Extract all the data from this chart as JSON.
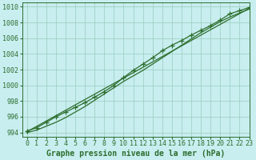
{
  "title": "Graphe pression niveau de la mer (hPa)",
  "xlim": [
    -0.5,
    23
  ],
  "ylim": [
    993.5,
    1010.5
  ],
  "yticks": [
    994,
    996,
    998,
    1000,
    1002,
    1004,
    1006,
    1008,
    1010
  ],
  "xticks": [
    0,
    1,
    2,
    3,
    4,
    5,
    6,
    7,
    8,
    9,
    10,
    11,
    12,
    13,
    14,
    15,
    16,
    17,
    18,
    19,
    20,
    21,
    22,
    23
  ],
  "background_color": "#c8eef0",
  "grid_color": "#99ccbb",
  "line_color": "#2d6e2d",
  "x": [
    0,
    1,
    2,
    3,
    4,
    5,
    6,
    7,
    8,
    9,
    10,
    11,
    12,
    13,
    14,
    15,
    16,
    17,
    18,
    19,
    20,
    21,
    22,
    23
  ],
  "y_upper": [
    994.2,
    994.6,
    995.3,
    996.0,
    996.6,
    997.2,
    997.8,
    998.5,
    999.2,
    1000.0,
    1001.0,
    1001.9,
    1002.7,
    1003.5,
    1004.4,
    1005.1,
    1005.7,
    1006.4,
    1007.0,
    1007.6,
    1008.3,
    1009.1,
    1009.5,
    1009.9
  ],
  "y_lower": [
    994.0,
    994.3,
    994.8,
    995.3,
    995.9,
    996.6,
    997.3,
    998.1,
    998.9,
    999.7,
    1000.5,
    1001.2,
    1001.9,
    1002.7,
    1003.5,
    1004.3,
    1005.1,
    1005.9,
    1006.7,
    1007.4,
    1008.1,
    1008.7,
    1009.2,
    1009.7
  ],
  "marker": "+",
  "markersize": 4,
  "linewidth": 0.9,
  "title_fontsize": 7,
  "tick_fontsize": 6
}
